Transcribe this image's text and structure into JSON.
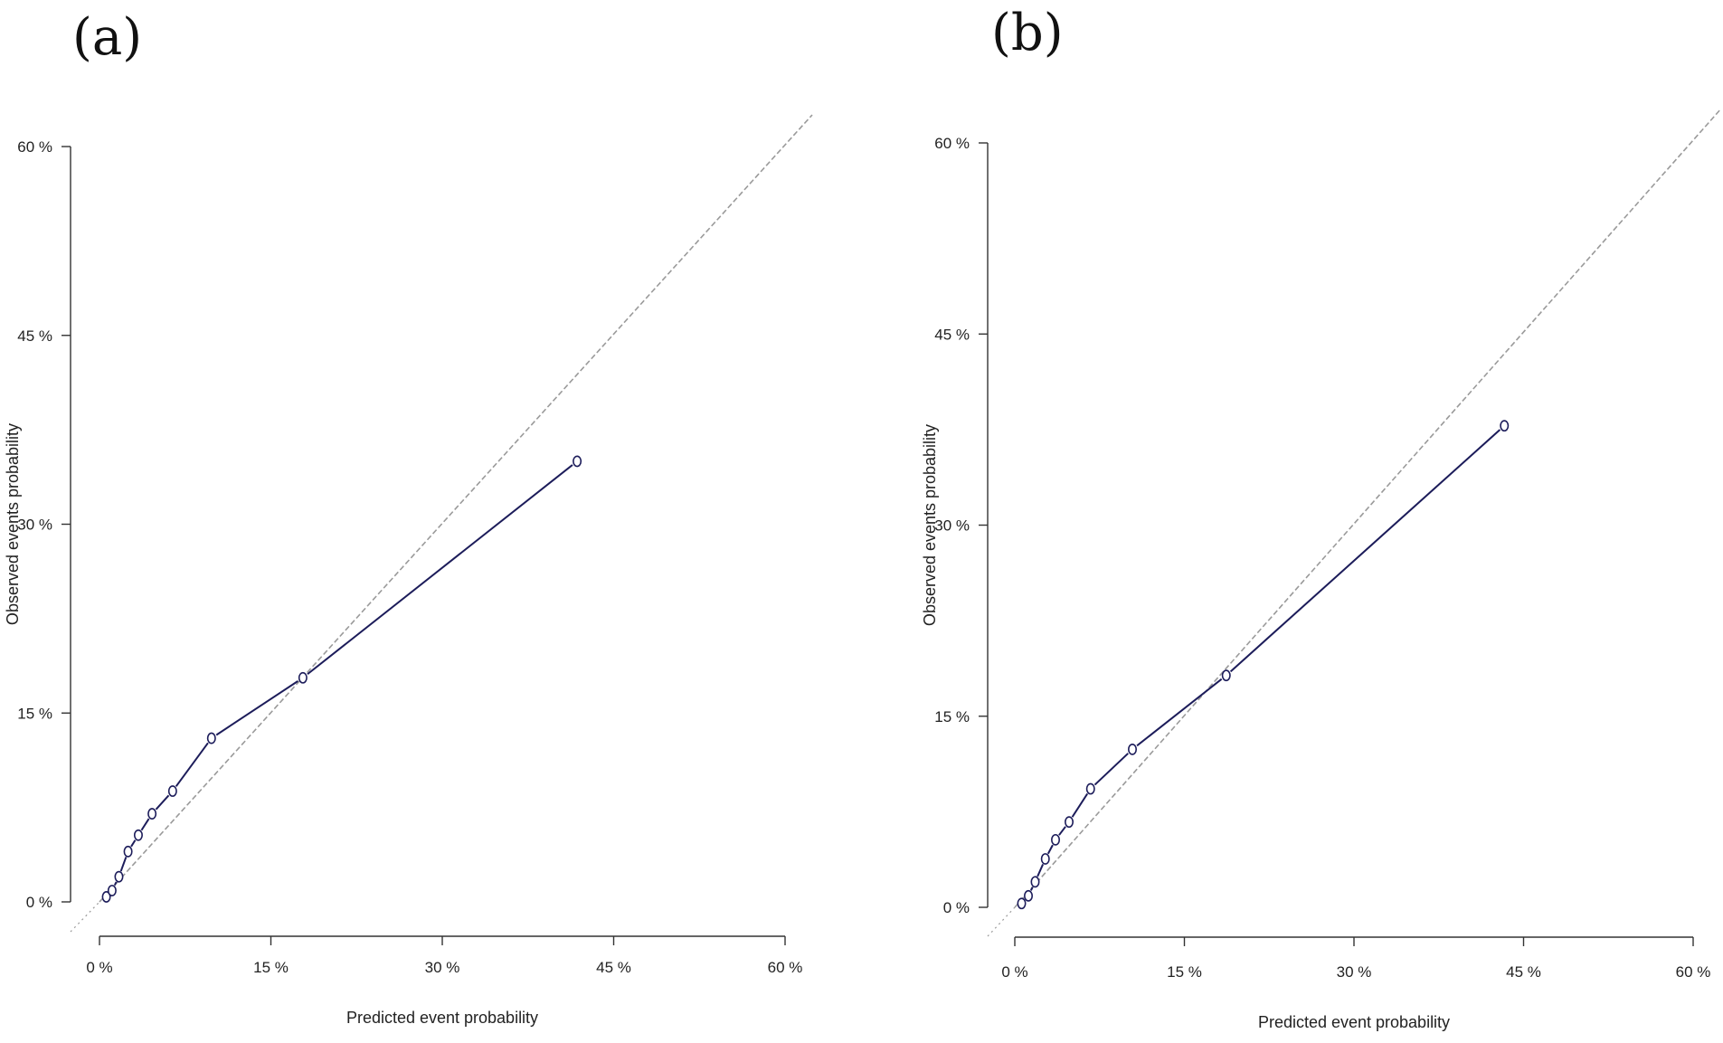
{
  "chart_data": [
    {
      "type": "line",
      "panel_label": "(a)",
      "xlabel": "Predicted event probability",
      "ylabel": "Observed events probability",
      "xlim": [
        0,
        60
      ],
      "ylim": [
        0,
        60
      ],
      "x_ticks": [
        "0 %",
        "15 %",
        "30 %",
        "45 %",
        "60 %"
      ],
      "y_ticks": [
        "0 %",
        "15 %",
        "30 %",
        "45 %",
        "60 %"
      ],
      "reference_line": "diagonal",
      "grid": false,
      "series": [
        {
          "x": [
            0.6,
            1.1,
            1.7,
            2.5,
            3.4,
            4.6,
            6.4,
            9.8,
            17.8,
            41.8
          ],
          "y": [
            0.4,
            0.9,
            2.0,
            4.0,
            5.3,
            7.0,
            8.8,
            13.0,
            17.8,
            35.0
          ]
        }
      ],
      "color": "#1c1c5a"
    },
    {
      "type": "line",
      "panel_label": "(b)",
      "xlabel": "Predicted event probability",
      "ylabel": "Observed events probability",
      "xlim": [
        0,
        60
      ],
      "ylim": [
        0,
        60
      ],
      "x_ticks": [
        "0 %",
        "15 %",
        "30 %",
        "45 %",
        "60 %"
      ],
      "y_ticks": [
        "0 %",
        "15 %",
        "30 %",
        "45 %",
        "60 %"
      ],
      "reference_line": "diagonal",
      "grid": false,
      "series": [
        {
          "x": [
            0.6,
            1.2,
            1.8,
            2.7,
            3.6,
            4.8,
            6.7,
            10.4,
            18.7,
            43.3
          ],
          "y": [
            0.3,
            0.9,
            2.0,
            3.8,
            5.3,
            6.7,
            9.3,
            12.4,
            18.2,
            37.8
          ]
        }
      ],
      "color": "#1c1c5a"
    }
  ]
}
